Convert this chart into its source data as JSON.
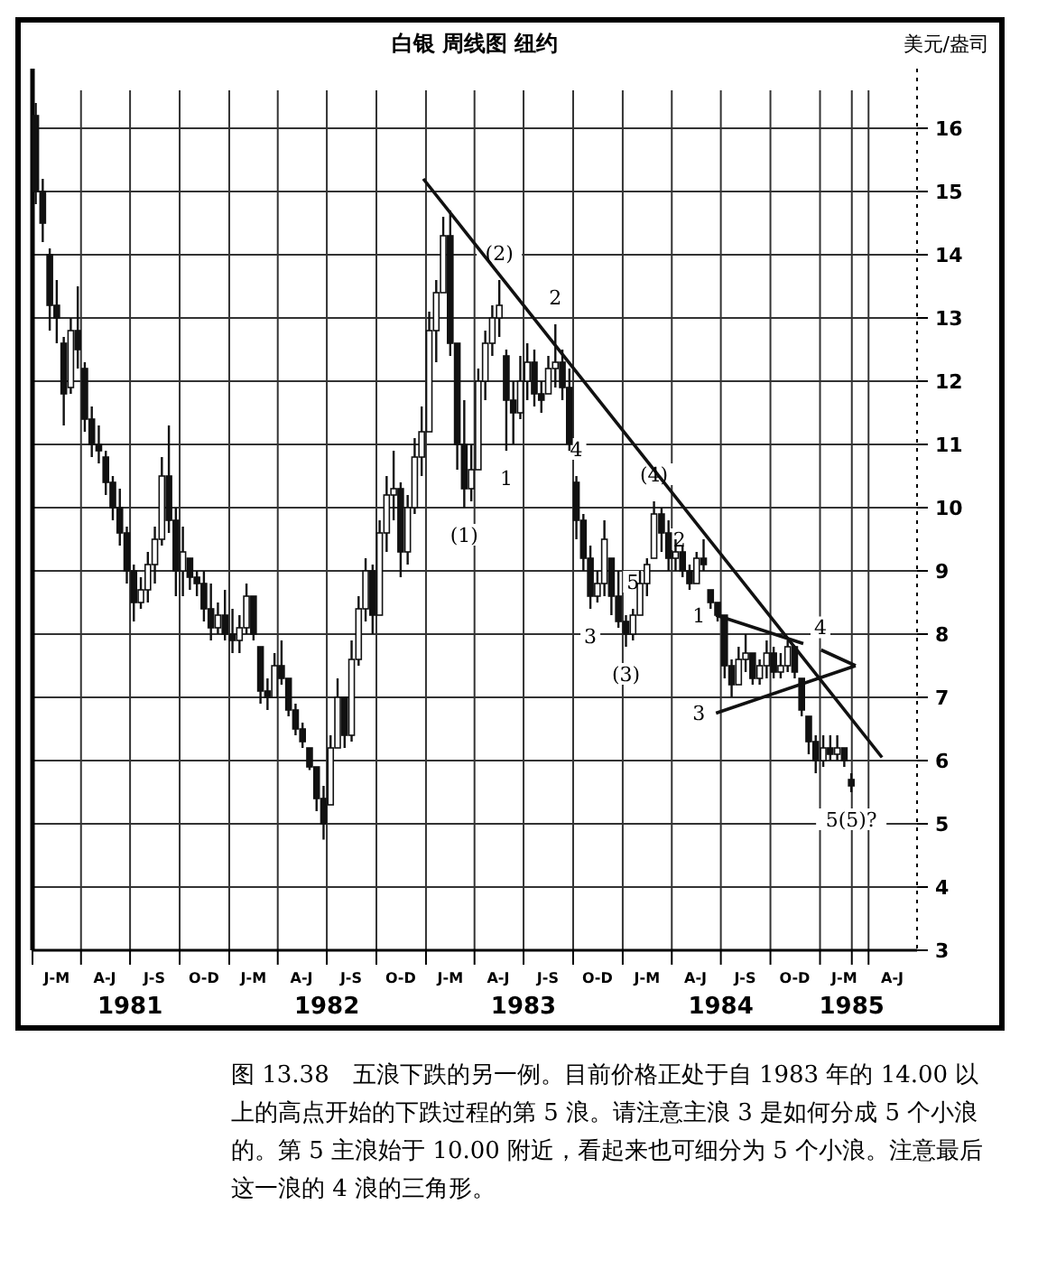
{
  "chart_data": {
    "type": "candlestick",
    "title": "白银 周线图 纽约",
    "ylabel": "美元/盎司",
    "xlim": [
      "1981-01-01",
      "1985-06-30"
    ],
    "ylim": [
      3,
      16.6
    ],
    "yticks": [
      3,
      4,
      5,
      6,
      7,
      8,
      9,
      10,
      11,
      12,
      13,
      14,
      15,
      16
    ],
    "xticks": [
      {
        "value": "1981-01-01",
        "label": null
      },
      {
        "value": "1981-04-01",
        "label": null
      },
      {
        "value": "1981-07-01",
        "label": "1981"
      },
      {
        "value": "1981-10-01",
        "label": null
      },
      {
        "value": "1982-01-01",
        "label": null
      },
      {
        "value": "1982-04-01",
        "label": null
      },
      {
        "value": "1982-07-01",
        "label": "1982"
      },
      {
        "value": "1982-10-01",
        "label": null
      },
      {
        "value": "1983-01-01",
        "label": null
      },
      {
        "value": "1983-04-01",
        "label": null
      },
      {
        "value": "1983-07-01",
        "label": "1983"
      },
      {
        "value": "1983-10-01",
        "label": null
      },
      {
        "value": "1984-01-01",
        "label": null
      },
      {
        "value": "1984-04-01",
        "label": null
      },
      {
        "value": "1984-07-01",
        "label": "1984"
      },
      {
        "value": "1984-10-01",
        "label": null
      },
      {
        "value": "1985-01-01",
        "label": null
      },
      {
        "value": "1985-03-01",
        "label": "1985"
      },
      {
        "value": "1985-04-01",
        "label": null
      }
    ],
    "grid": true,
    "color": "#111111",
    "x": [
      "1981-01-07",
      "1981-01-20",
      "1981-02-02",
      "1981-02-15",
      "1981-02-28",
      "1981-03-13",
      "1981-03-26",
      "1981-04-08",
      "1981-04-21",
      "1981-05-04",
      "1981-05-17",
      "1981-05-30",
      "1981-06-12",
      "1981-06-25",
      "1981-07-08",
      "1981-07-21",
      "1981-08-03",
      "1981-08-16",
      "1981-08-29",
      "1981-09-11",
      "1981-09-24",
      "1981-10-07",
      "1981-10-20",
      "1981-11-02",
      "1981-11-15",
      "1981-11-28",
      "1981-12-11",
      "1981-12-24",
      "1982-01-07",
      "1982-01-20",
      "1982-02-02",
      "1982-02-15",
      "1982-02-28",
      "1982-03-13",
      "1982-03-26",
      "1982-04-08",
      "1982-04-21",
      "1982-05-04",
      "1982-05-17",
      "1982-05-30",
      "1982-06-12",
      "1982-06-25",
      "1982-07-08",
      "1982-07-21",
      "1982-08-03",
      "1982-08-16",
      "1982-08-29",
      "1982-09-11",
      "1982-09-24",
      "1982-10-07",
      "1982-10-20",
      "1982-11-02",
      "1982-11-15",
      "1982-11-28",
      "1982-12-11",
      "1982-12-24",
      "1983-01-07",
      "1983-01-20",
      "1983-02-02",
      "1983-02-15",
      "1983-02-28",
      "1983-03-13",
      "1983-03-26",
      "1983-04-08",
      "1983-04-21",
      "1983-05-04",
      "1983-05-17",
      "1983-05-30",
      "1983-06-12",
      "1983-06-25",
      "1983-07-08",
      "1983-07-21",
      "1983-08-03",
      "1983-08-16",
      "1983-08-29",
      "1983-09-11",
      "1983-09-24",
      "1983-10-07",
      "1983-10-20",
      "1983-11-02",
      "1983-11-15",
      "1983-11-28",
      "1983-12-11",
      "1983-12-24",
      "1984-01-07",
      "1984-01-20",
      "1984-02-02",
      "1984-02-15",
      "1984-02-28",
      "1984-03-13",
      "1984-03-26",
      "1984-04-08",
      "1984-04-21",
      "1984-05-04",
      "1984-05-17",
      "1984-05-30",
      "1984-06-12",
      "1984-06-25",
      "1984-07-08",
      "1984-07-21",
      "1984-08-03",
      "1984-08-16",
      "1984-08-29",
      "1984-09-11",
      "1984-09-24",
      "1984-10-07",
      "1984-10-20",
      "1984-11-02",
      "1984-11-15",
      "1984-11-28",
      "1984-12-11",
      "1984-12-24",
      "1985-01-07",
      "1985-01-20",
      "1985-02-02",
      "1985-02-15",
      "1985-02-28"
    ],
    "ohlc": [
      [
        16.2,
        16.4,
        14.8,
        15.0
      ],
      [
        15.0,
        15.2,
        14.2,
        14.5
      ],
      [
        14.0,
        14.1,
        12.8,
        13.2
      ],
      [
        13.2,
        13.6,
        12.6,
        13.0
      ],
      [
        12.6,
        12.7,
        11.3,
        11.8
      ],
      [
        11.9,
        13.0,
        11.8,
        12.8
      ],
      [
        12.8,
        13.5,
        12.2,
        12.5
      ],
      [
        12.2,
        12.3,
        11.2,
        11.4
      ],
      [
        11.4,
        11.6,
        10.8,
        11.0
      ],
      [
        11.0,
        11.3,
        10.7,
        10.9
      ],
      [
        10.8,
        10.9,
        10.2,
        10.4
      ],
      [
        10.4,
        10.5,
        9.8,
        10.0
      ],
      [
        10.0,
        10.3,
        9.4,
        9.6
      ],
      [
        9.6,
        9.7,
        8.8,
        9.0
      ],
      [
        9.0,
        9.1,
        8.2,
        8.5
      ],
      [
        8.5,
        8.9,
        8.4,
        8.7
      ],
      [
        8.7,
        9.3,
        8.5,
        9.1
      ],
      [
        9.1,
        9.7,
        8.8,
        9.5
      ],
      [
        9.5,
        10.8,
        9.4,
        10.5
      ],
      [
        10.5,
        11.3,
        9.6,
        9.8
      ],
      [
        9.8,
        10.0,
        8.6,
        9.0
      ],
      [
        9.0,
        9.7,
        8.6,
        9.3
      ],
      [
        9.2,
        9.2,
        8.7,
        8.9
      ],
      [
        8.9,
        9.0,
        8.6,
        8.8
      ],
      [
        8.8,
        9.0,
        8.2,
        8.4
      ],
      [
        8.4,
        8.8,
        7.9,
        8.1
      ],
      [
        8.1,
        8.5,
        8.0,
        8.3
      ],
      [
        8.3,
        8.7,
        7.9,
        8.0
      ],
      [
        8.0,
        8.4,
        7.7,
        7.9
      ],
      [
        7.9,
        8.3,
        7.7,
        8.1
      ],
      [
        8.1,
        8.8,
        8.0,
        8.6
      ],
      [
        8.6,
        8.6,
        7.9,
        8.0
      ],
      [
        7.8,
        7.8,
        6.9,
        7.1
      ],
      [
        7.1,
        7.3,
        6.8,
        7.0
      ],
      [
        7.0,
        7.7,
        7.0,
        7.5
      ],
      [
        7.5,
        7.9,
        7.2,
        7.3
      ],
      [
        7.3,
        7.3,
        6.7,
        6.8
      ],
      [
        6.8,
        6.9,
        6.4,
        6.5
      ],
      [
        6.5,
        6.6,
        6.2,
        6.3
      ],
      [
        6.2,
        6.2,
        5.85,
        5.9
      ],
      [
        5.9,
        5.9,
        5.2,
        5.4
      ],
      [
        5.4,
        5.6,
        4.75,
        5.0
      ],
      [
        5.3,
        6.4,
        5.3,
        6.2
      ],
      [
        6.2,
        7.3,
        6.2,
        7.0
      ],
      [
        7.0,
        7.0,
        6.2,
        6.4
      ],
      [
        6.4,
        7.9,
        6.3,
        7.6
      ],
      [
        7.6,
        8.6,
        7.5,
        8.4
      ],
      [
        8.4,
        9.2,
        8.2,
        9.0
      ],
      [
        9.0,
        9.1,
        8.0,
        8.3
      ],
      [
        8.3,
        9.8,
        8.3,
        9.6
      ],
      [
        9.6,
        10.5,
        9.3,
        10.2
      ],
      [
        10.2,
        10.9,
        9.8,
        10.3
      ],
      [
        10.3,
        10.4,
        8.9,
        9.3
      ],
      [
        9.3,
        10.2,
        9.1,
        10.0
      ],
      [
        10.0,
        11.1,
        9.9,
        10.8
      ],
      [
        10.8,
        11.6,
        10.5,
        11.2
      ],
      [
        11.2,
        13.1,
        11.2,
        12.8
      ],
      [
        12.8,
        13.6,
        12.3,
        13.4
      ],
      [
        13.4,
        14.6,
        13.4,
        14.3
      ],
      [
        14.3,
        14.7,
        12.4,
        12.6
      ],
      [
        12.6,
        12.6,
        10.6,
        11.0
      ],
      [
        11.0,
        11.7,
        10.0,
        10.3
      ],
      [
        10.3,
        11.0,
        10.1,
        10.6
      ],
      [
        10.6,
        12.2,
        10.6,
        12.0
      ],
      [
        12.0,
        12.8,
        11.7,
        12.6
      ],
      [
        12.6,
        13.2,
        12.4,
        13.0
      ],
      [
        13.0,
        13.6,
        12.7,
        13.2
      ],
      [
        12.4,
        12.5,
        10.9,
        11.7
      ],
      [
        11.7,
        12.0,
        11.0,
        11.5
      ],
      [
        11.5,
        12.4,
        11.4,
        12.0
      ],
      [
        12.0,
        12.6,
        11.7,
        12.3
      ],
      [
        12.3,
        12.5,
        11.6,
        11.8
      ],
      [
        11.8,
        12.0,
        11.5,
        11.7
      ],
      [
        11.8,
        12.4,
        11.8,
        12.2
      ],
      [
        12.2,
        12.9,
        11.9,
        12.3
      ],
      [
        12.3,
        12.5,
        11.7,
        11.9
      ],
      [
        11.9,
        12.2,
        10.9,
        11.0
      ],
      [
        10.4,
        10.5,
        9.5,
        9.8
      ],
      [
        9.8,
        9.9,
        9.0,
        9.2
      ],
      [
        9.2,
        9.4,
        8.4,
        8.6
      ],
      [
        8.6,
        9.0,
        8.5,
        8.8
      ],
      [
        8.8,
        9.8,
        8.6,
        9.5
      ],
      [
        9.2,
        9.2,
        8.3,
        8.6
      ],
      [
        8.6,
        9.0,
        8.1,
        8.2
      ],
      [
        8.2,
        8.3,
        7.8,
        8.0
      ],
      [
        8.0,
        8.4,
        7.9,
        8.3
      ],
      [
        8.3,
        9.0,
        8.3,
        8.8
      ],
      [
        8.8,
        9.2,
        8.6,
        9.1
      ],
      [
        9.2,
        10.1,
        9.2,
        9.9
      ],
      [
        9.9,
        10.0,
        9.3,
        9.6
      ],
      [
        9.6,
        9.8,
        9.0,
        9.2
      ],
      [
        9.2,
        9.5,
        9.0,
        9.3
      ],
      [
        9.3,
        9.4,
        8.9,
        9.0
      ],
      [
        9.0,
        9.1,
        8.7,
        8.8
      ],
      [
        8.8,
        9.3,
        8.8,
        9.2
      ],
      [
        9.2,
        9.5,
        9.0,
        9.1
      ],
      [
        8.7,
        8.7,
        8.4,
        8.5
      ],
      [
        8.5,
        8.5,
        8.2,
        8.3
      ],
      [
        8.3,
        8.3,
        7.3,
        7.5
      ],
      [
        7.5,
        7.6,
        7.0,
        7.2
      ],
      [
        7.2,
        7.8,
        7.2,
        7.6
      ],
      [
        7.6,
        8.0,
        7.4,
        7.7
      ],
      [
        7.7,
        7.7,
        7.2,
        7.3
      ],
      [
        7.3,
        7.6,
        7.2,
        7.5
      ],
      [
        7.5,
        7.9,
        7.3,
        7.7
      ],
      [
        7.7,
        7.8,
        7.3,
        7.4
      ],
      [
        7.4,
        7.7,
        7.3,
        7.5
      ],
      [
        7.5,
        7.9,
        7.4,
        7.8
      ],
      [
        7.8,
        7.8,
        7.3,
        7.4
      ],
      [
        7.3,
        7.3,
        6.7,
        6.8
      ],
      [
        6.7,
        6.7,
        6.1,
        6.3
      ],
      [
        6.3,
        6.4,
        5.8,
        6.0
      ],
      [
        6.0,
        6.4,
        5.9,
        6.2
      ],
      [
        6.2,
        6.4,
        6.0,
        6.1
      ],
      [
        6.1,
        6.4,
        6.0,
        6.2
      ],
      [
        6.2,
        6.2,
        5.9,
        6.0
      ],
      [
        5.7,
        5.8,
        5.5,
        5.6
      ]
    ],
    "series": [
      {
        "type": "line",
        "color": "#111111",
        "x": [
          "1982-12-27",
          "1985-04-26"
        ],
        "values": [
          15.2,
          6.05
        ]
      },
      {
        "type": "line",
        "color": "#111111",
        "x": [
          "1984-06-22",
          "1984-12-01"
        ],
        "values": [
          8.3,
          7.85
        ]
      },
      {
        "type": "line",
        "color": "#111111",
        "x": [
          "1984-06-22",
          "1985-03-08"
        ],
        "values": [
          6.75,
          7.5
        ]
      },
      {
        "type": "line",
        "color": "#111111",
        "x": [
          "1985-01-03",
          "1985-03-08"
        ],
        "values": [
          7.75,
          7.5
        ]
      }
    ],
    "annotations": [
      "J-M",
      "A-J",
      "J-S",
      "O-D",
      "J-M",
      "A-J",
      "J-S",
      "O-D",
      "J-M",
      "A-J",
      "J-S",
      "O-D",
      "J-M",
      "A-J",
      "J-S",
      "O-D",
      "J-M",
      "A-J",
      {
        "text": "(1)",
        "x": "1983-03-13",
        "y": 10.0
      },
      {
        "text": "(2)",
        "x": "1983-05-17",
        "y": 13.6
      },
      {
        "text": "1",
        "x": "1983-05-30",
        "y": 10.9
      },
      {
        "text": "2",
        "x": "1983-08-29",
        "y": 12.9
      },
      {
        "text": "4",
        "x": "1983-10-07",
        "y": 10.5
      },
      {
        "text": "(4)",
        "x": "1984-02-28",
        "y": 10.1
      },
      {
        "text": "2",
        "x": "1984-05-17",
        "y": 9.5
      },
      {
        "text": "3",
        "x": "1983-11-02",
        "y": 8.4
      },
      {
        "text": "5",
        "x": "1984-01-20",
        "y": 8.4
      },
      {
        "text": "(3)",
        "x": "1984-01-07",
        "y": 7.8
      },
      {
        "text": "1",
        "x": "1984-06-22",
        "y": 8.3
      },
      {
        "text": "3",
        "x": "1984-06-22",
        "y": 6.75
      },
      {
        "text": "4",
        "x": "1984-12-01",
        "y": 7.85
      },
      {
        "text": "5(5)?",
        "x": "1985-02-28",
        "y": 5.5
      },
      "图 13.38　五浪下跌的另一例。目前价格正处于自 1983 年的 14.00 以上的高点开始的下跌过程的第 5 浪。请注意主浪 3 是如何分成 5 个小浪的。第 5 主浪始于 10.00 附近，看起来也可细分为 5 个小浪。注意最后这一浪的 4 浪的三角形。"
    ]
  }
}
